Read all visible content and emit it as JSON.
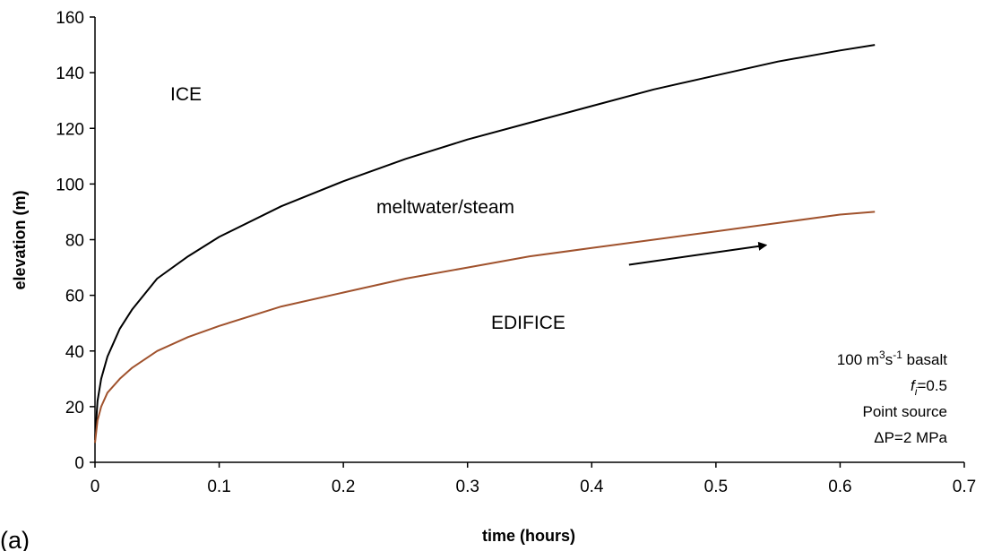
{
  "chart_data": {
    "type": "line",
    "panel_label": "(a)",
    "xlabel": "time (hours)",
    "ylabel": "elevation (m)",
    "xlim": [
      0,
      0.7
    ],
    "ylim": [
      0,
      160
    ],
    "x_ticks": [
      0,
      0.1,
      0.2,
      0.3,
      0.4,
      0.5,
      0.6,
      0.7
    ],
    "x_tick_labels": [
      "0",
      "0.1",
      "0.2",
      "0.3",
      "0.4",
      "0.5",
      "0.6",
      "0.7"
    ],
    "y_ticks": [
      0,
      20,
      40,
      60,
      80,
      100,
      120,
      140,
      160
    ],
    "y_tick_labels": [
      "0",
      "20",
      "40",
      "60",
      "80",
      "100",
      "120",
      "140",
      "160"
    ],
    "grid": false,
    "legend": "none",
    "series": [
      {
        "color": "#000000",
        "x": [
          0,
          0.002,
          0.005,
          0.01,
          0.02,
          0.03,
          0.05,
          0.075,
          0.1,
          0.15,
          0.2,
          0.25,
          0.3,
          0.35,
          0.4,
          0.45,
          0.5,
          0.55,
          0.6,
          0.628
        ],
        "y": [
          8,
          22,
          30,
          38,
          48,
          55,
          66,
          74,
          81,
          92,
          101,
          109,
          116,
          122,
          128,
          134,
          139,
          144,
          148,
          150
        ]
      },
      {
        "color": "#a0522d",
        "x": [
          0,
          0.002,
          0.005,
          0.01,
          0.02,
          0.03,
          0.05,
          0.075,
          0.1,
          0.15,
          0.2,
          0.25,
          0.3,
          0.35,
          0.4,
          0.45,
          0.5,
          0.55,
          0.6,
          0.628
        ],
        "y": [
          7,
          15,
          20,
          25,
          30,
          34,
          40,
          45,
          49,
          56,
          61,
          66,
          70,
          74,
          77,
          80,
          83,
          86,
          89,
          90
        ]
      }
    ],
    "arrow": {
      "from": [
        0.43,
        71
      ],
      "to": [
        0.54,
        78
      ]
    },
    "region_labels": {
      "ice": "ICE",
      "meltwater": "meltwater/steam",
      "edifice": "EDIFICE"
    },
    "annotation": {
      "line1_prefix": "100 m",
      "line1_sup1": "3",
      "line1_mid": "s",
      "line1_sup2": "-1",
      "line1_suffix": " basalt",
      "line2_var": "f",
      "line2_sub": "i",
      "line2_suffix": "=0.5",
      "line3": "Point source",
      "line4": "ΔP=2 MPa"
    }
  }
}
